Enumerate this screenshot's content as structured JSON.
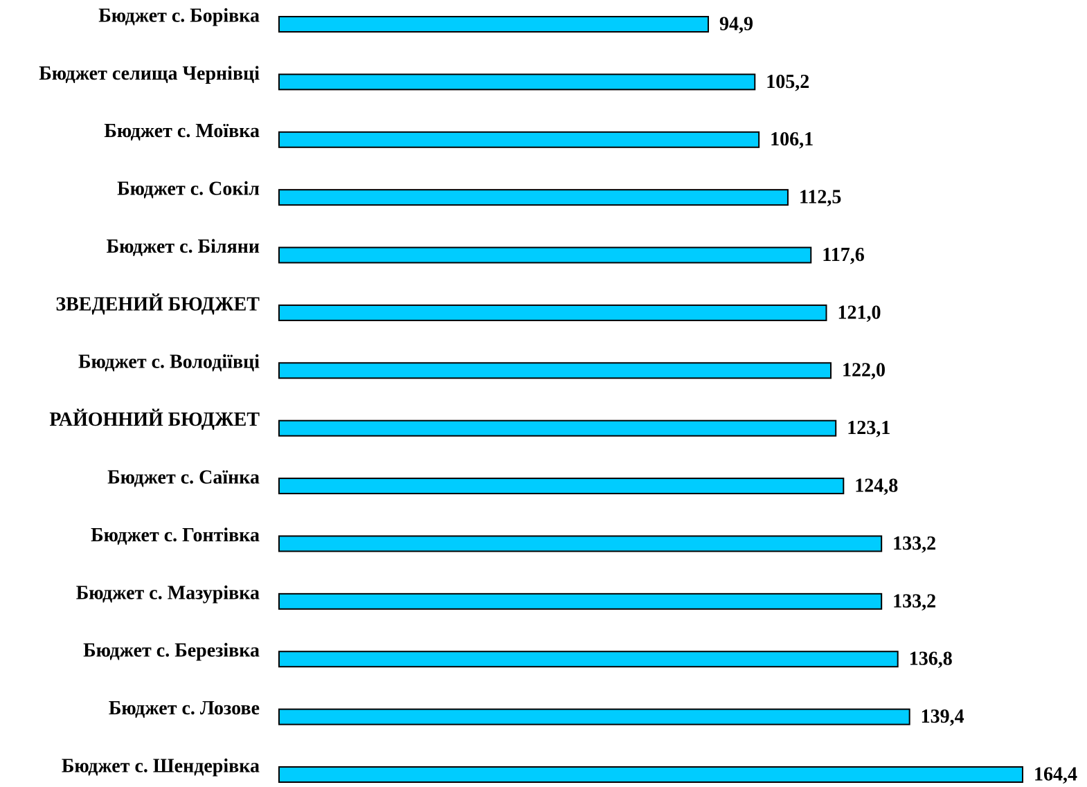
{
  "chart_data": {
    "type": "barh",
    "categories": [
      "Бюджет с. Борівка",
      "Бюджет селища Чернівці",
      "Бюджет с. Моївка",
      "Бюджет с. Сокіл",
      "Бюджет с. Біляни",
      "ЗВЕДЕНИЙ БЮДЖЕТ",
      "Бюджет с. Володіївці",
      "РАЙОННИЙ БЮДЖЕТ",
      "Бюджет с. Саїнка",
      "Бюджет с. Гонтівка",
      "Бюджет с. Мазурівка",
      "Бюджет с. Березівка",
      "Бюджет с. Лозове",
      "Бюджет с. Шендерівка"
    ],
    "values": [
      94.9,
      105.2,
      106.1,
      112.5,
      117.6,
      121.0,
      122.0,
      123.1,
      124.8,
      133.2,
      133.2,
      136.8,
      139.4,
      164.4
    ],
    "value_labels": [
      "94,9",
      "105,2",
      "106,1",
      "112,5",
      "117,6",
      "121,0",
      "122,0",
      "123,1",
      "124,8",
      "133,2",
      "133,2",
      "136,8",
      "139,4",
      "164,4"
    ],
    "color": "#00ccff"
  }
}
